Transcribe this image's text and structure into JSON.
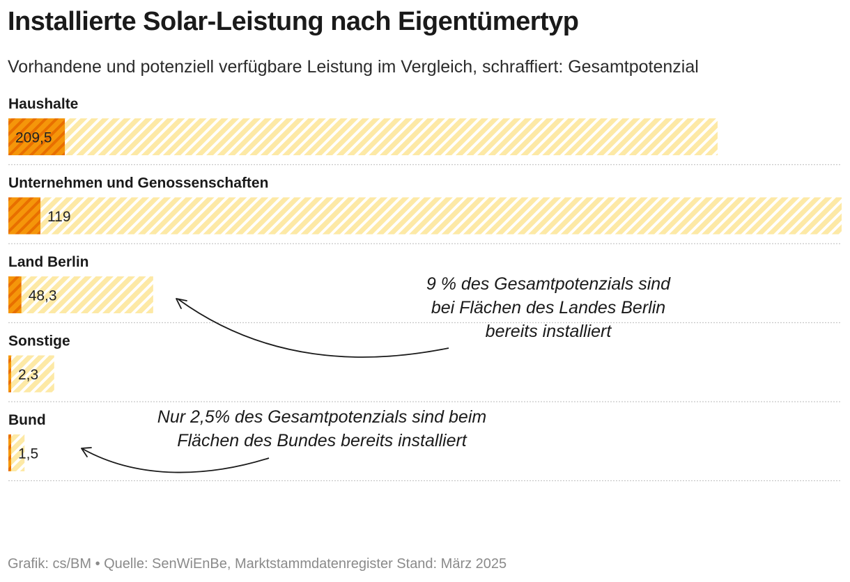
{
  "header": {
    "title": "Installierte Solar-Leistung nach Eigentümertyp",
    "subtitle": "Vorhandene und potenziell verfügbare Leistung im Vergleich, schraffiert: Gesamtpotenzial"
  },
  "footer": {
    "text": "Grafik: cs/BM • Quelle: SenWiEnBe, Marktstammdatenregister Stand: März 2025"
  },
  "colors": {
    "installed": "#f5960a",
    "installed_stripe": "#e86f00",
    "potential": "#fde9a6",
    "potential_stripe": "#ffffff",
    "divider": "#c8c8c8"
  },
  "chart_data": {
    "type": "bar",
    "orientation": "horizontal",
    "title": "Installierte Solar-Leistung nach Eigentümertyp",
    "categories": [
      "Haushalte",
      "Unternehmen und Genossenschaften",
      "Land Berlin",
      "Sonstige",
      "Bund"
    ],
    "series": [
      {
        "name": "Installiert",
        "values": [
          209.5,
          119,
          48.3,
          2.3,
          1.5
        ]
      },
      {
        "name": "Gesamtpotenzial",
        "values": [
          2630,
          3090,
          537,
          170,
          60
        ]
      }
    ],
    "value_labels": [
      "209,5",
      "119",
      "48,3",
      "2,3",
      "1,5"
    ],
    "xlim": [
      0,
      3090
    ],
    "annotations": [
      {
        "target": "Land Berlin",
        "lines": [
          "9 % des Gesamtpotenzials sind",
          "bei Flächen des Landes Berlin",
          "bereits installiert"
        ]
      },
      {
        "target": "Bund",
        "lines": [
          "Nur 2,5% des Gesamtpotenzials sind beim",
          "Flächen des Bundes bereits installiert"
        ]
      }
    ]
  }
}
